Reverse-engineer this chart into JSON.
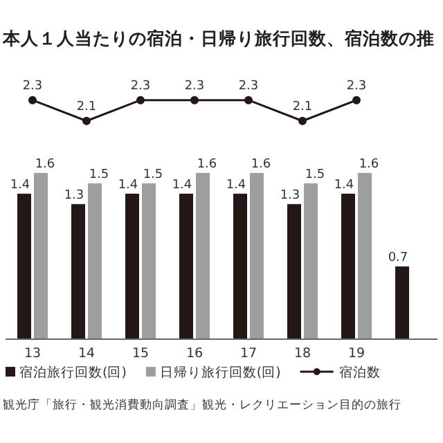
{
  "chart_data": {
    "type": "bar",
    "title": "本人１人当たりの宿泊・日帰り旅行回数、宿泊数の推",
    "categories": [
      "13",
      "14",
      "15",
      "16",
      "17",
      "18",
      "19",
      null
    ],
    "series": [
      {
        "name": "宿泊旅行回数(回)",
        "color": "#231815",
        "values": [
          1.4,
          1.3,
          1.4,
          1.4,
          1.4,
          1.3,
          1.4,
          0.7
        ]
      },
      {
        "name": "日帰り旅行回数(回)",
        "color": "#9e9e9e",
        "values": [
          1.6,
          1.5,
          1.5,
          1.6,
          1.6,
          1.5,
          1.6,
          null
        ]
      },
      {
        "name": "宿泊数",
        "type": "line",
        "color": "#231815",
        "marker": "circle",
        "values": [
          2.3,
          2.1,
          2.3,
          2.3,
          2.3,
          2.1,
          2.3,
          null
        ]
      }
    ],
    "data_labels": true,
    "legend": "bottom",
    "annotations": [
      "観光庁「旅行・観光消費動向調査」観光・レクリエーション目的の旅行"
    ]
  }
}
